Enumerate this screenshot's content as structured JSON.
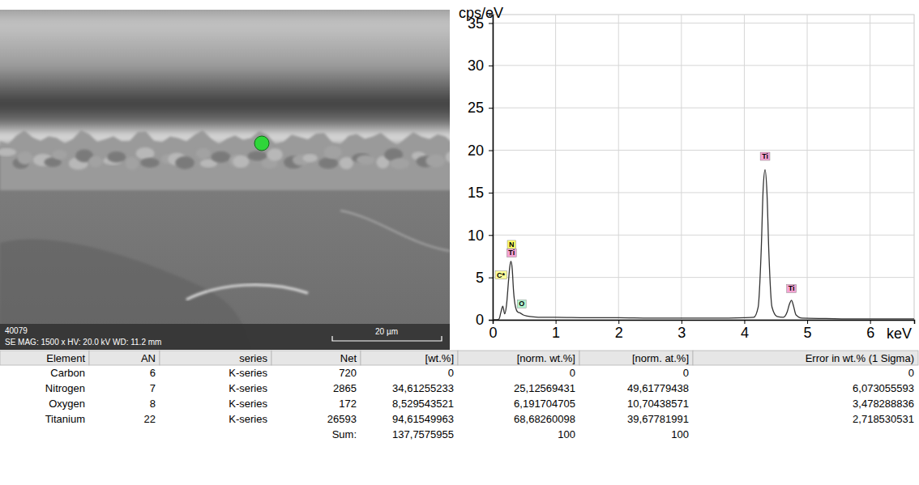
{
  "image": {
    "id": "40079",
    "info": "SE MAG: 1500 x HV: 20.0 kV WD: 11.2 mm",
    "scale_bar": "20 µm"
  },
  "chart_data": {
    "type": "line",
    "y_label": "cps/eV",
    "x_label": "keV",
    "x": [
      0,
      0.05,
      0.1,
      0.13,
      0.16,
      0.19,
      0.22,
      0.25,
      0.27,
      0.29,
      0.31,
      0.33,
      0.36,
      0.4,
      0.44,
      0.48,
      0.55,
      0.65,
      0.8,
      1.0,
      1.5,
      2.0,
      2.5,
      3.0,
      3.5,
      4.0,
      4.15,
      4.22,
      4.27,
      4.3,
      4.33,
      4.36,
      4.39,
      4.44,
      4.52,
      4.62,
      4.68,
      4.72,
      4.75,
      4.78,
      4.82,
      4.92,
      5.3,
      5.8,
      6.3,
      6.7
    ],
    "values": [
      0,
      0,
      0.1,
      0.9,
      1.6,
      0.7,
      1.8,
      4.5,
      6.2,
      6.9,
      6.0,
      3.5,
      1.6,
      0.9,
      0.8,
      0.6,
      0.45,
      0.35,
      0.3,
      0.3,
      0.25,
      0.25,
      0.2,
      0.2,
      0.2,
      0.25,
      0.3,
      1.5,
      8.5,
      15.5,
      17.7,
      15.0,
      8.0,
      1.5,
      0.4,
      0.3,
      0.9,
      1.9,
      2.3,
      1.7,
      0.6,
      0.2,
      0.15,
      0.1,
      0.1,
      0.1
    ],
    "color": "#333333",
    "xlim": [
      0,
      6.7
    ],
    "ylim": [
      0,
      36
    ],
    "xticks": [
      0,
      1,
      2,
      3,
      4,
      5,
      6
    ],
    "yticks": [
      0,
      5,
      10,
      15,
      20,
      25,
      30,
      35
    ],
    "grid": true,
    "annotations": [
      {
        "text": "Ti",
        "x": 4.33,
        "y": 19.0,
        "color": "#f5a3d3"
      },
      {
        "text": "Ti",
        "x": 4.75,
        "y": 3.4,
        "color": "#f5a3d3"
      },
      {
        "text": "N",
        "x": 0.3,
        "y": 8.6,
        "color": "#ffff66"
      },
      {
        "text": "Ti",
        "x": 0.3,
        "y": 7.6,
        "color": "#f5a3d3"
      },
      {
        "text": "C*",
        "x": 0.13,
        "y": 5.0,
        "color": "#ffff99"
      },
      {
        "text": "O",
        "x": 0.46,
        "y": 1.6,
        "color": "#b3f5d0"
      }
    ]
  },
  "table": {
    "header": [
      "Element",
      "AN",
      "series",
      "Net",
      "[wt.%]",
      "[norm. wt.%]",
      "[norm. at.%]",
      "Error in wt.% (1 Sigma)"
    ],
    "rows": [
      [
        "Carbon",
        "6",
        "K-series",
        "720",
        "0",
        "0",
        "0",
        "0"
      ],
      [
        "Nitrogen",
        "7",
        "K-series",
        "2865",
        "34,61255233",
        "25,12569431",
        "49,61779438",
        "6,073055593"
      ],
      [
        "Oxygen",
        "8",
        "K-series",
        "172",
        "8,529543521",
        "6,191704705",
        "10,70438571",
        "3,478288836"
      ],
      [
        "Titanium",
        "22",
        "K-series",
        "26593",
        "94,61549963",
        "68,68260098",
        "39,67781991",
        "2,718530531"
      ],
      [
        null,
        null,
        null,
        "Sum:",
        "137,7575955",
        "100",
        "100",
        null
      ]
    ]
  }
}
